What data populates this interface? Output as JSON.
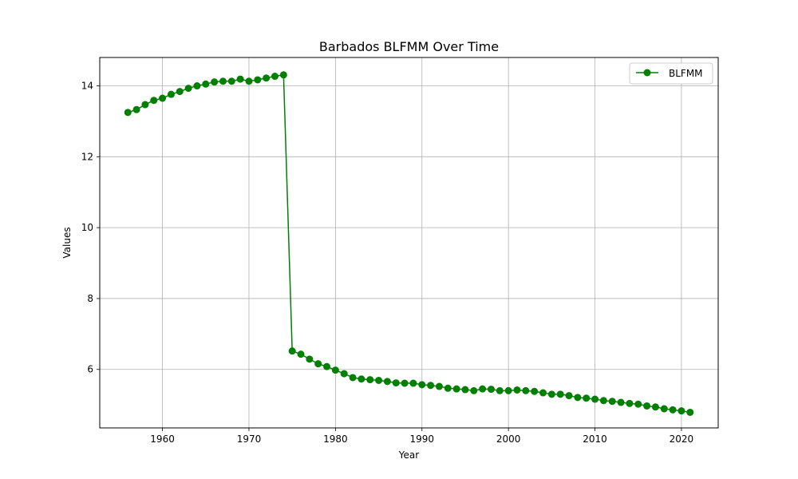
{
  "chart_data": {
    "type": "line",
    "title": "Barbados BLFMM Over Time",
    "xlabel": "Year",
    "ylabel": "Values",
    "xlim": [
      1952.75,
      2024.25
    ],
    "ylim": [
      4.35,
      14.8
    ],
    "xticks": [
      1960,
      1970,
      1980,
      1990,
      2000,
      2010,
      2020
    ],
    "yticks": [
      6,
      8,
      10,
      12,
      14
    ],
    "grid": true,
    "legend_position": "top-right",
    "series": [
      {
        "name": "BLFMM",
        "color": "#008000",
        "marker": "circle",
        "x": [
          1956,
          1957,
          1958,
          1959,
          1960,
          1961,
          1962,
          1963,
          1964,
          1965,
          1966,
          1967,
          1968,
          1969,
          1970,
          1971,
          1972,
          1973,
          1974,
          1975,
          1976,
          1977,
          1978,
          1979,
          1980,
          1981,
          1982,
          1983,
          1984,
          1985,
          1986,
          1987,
          1988,
          1989,
          1990,
          1991,
          1992,
          1993,
          1994,
          1995,
          1996,
          1997,
          1998,
          1999,
          2000,
          2001,
          2002,
          2003,
          2004,
          2005,
          2006,
          2007,
          2008,
          2009,
          2010,
          2011,
          2012,
          2013,
          2014,
          2015,
          2016,
          2017,
          2018,
          2019,
          2020,
          2021
        ],
        "values": [
          13.25,
          13.33,
          13.47,
          13.59,
          13.65,
          13.76,
          13.84,
          13.93,
          14.0,
          14.05,
          14.11,
          14.13,
          14.13,
          14.19,
          14.13,
          14.17,
          14.22,
          14.27,
          14.31,
          6.52,
          6.43,
          6.29,
          6.16,
          6.08,
          5.98,
          5.88,
          5.77,
          5.73,
          5.71,
          5.69,
          5.66,
          5.62,
          5.61,
          5.61,
          5.57,
          5.55,
          5.52,
          5.47,
          5.45,
          5.43,
          5.4,
          5.45,
          5.44,
          5.4,
          5.4,
          5.42,
          5.4,
          5.38,
          5.34,
          5.3,
          5.3,
          5.26,
          5.21,
          5.19,
          5.16,
          5.12,
          5.1,
          5.07,
          5.04,
          5.02,
          4.97,
          4.94,
          4.89,
          4.86,
          4.83,
          4.79
        ]
      }
    ]
  }
}
